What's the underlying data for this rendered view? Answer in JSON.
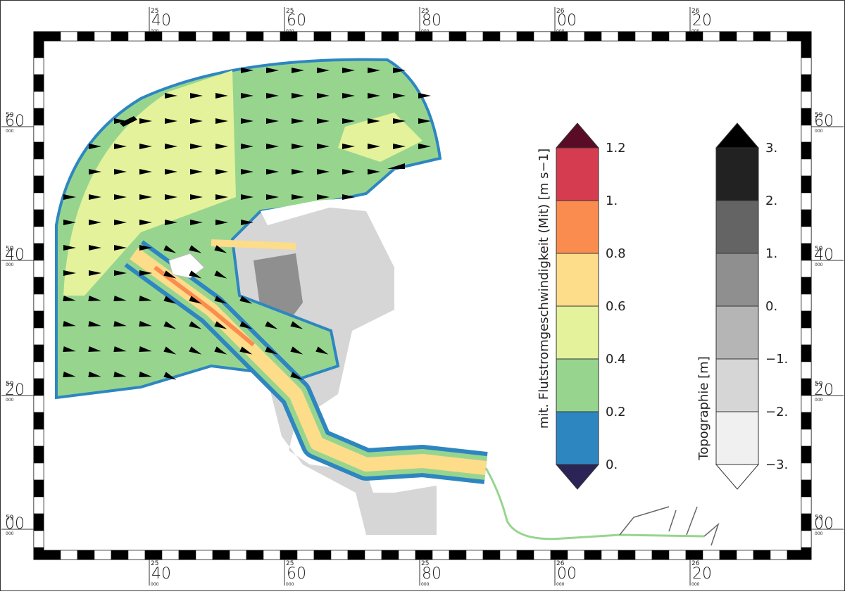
{
  "map": {
    "x_labels": [
      {
        "degree": "25",
        "minute": "40",
        "sub": "000"
      },
      {
        "degree": "25",
        "minute": "60",
        "sub": "000"
      },
      {
        "degree": "25",
        "minute": "80",
        "sub": "000"
      },
      {
        "degree": "26",
        "minute": "00",
        "sub": "000"
      },
      {
        "degree": "26",
        "minute": "20",
        "sub": "000"
      }
    ],
    "y_labels": [
      {
        "degree": "59",
        "minute": "60",
        "sub": "000"
      },
      {
        "degree": "59",
        "minute": "40",
        "sub": "000"
      },
      {
        "degree": "59",
        "minute": "20",
        "sub": "000"
      },
      {
        "degree": "59",
        "minute": "00",
        "sub": "000"
      }
    ]
  },
  "legends": [
    {
      "title": "mit. Flutstromgeschwindigkeit (Mit) [m s−1]",
      "ticks": [
        "1.2",
        "1.",
        "0.8",
        "0.6",
        "0.4",
        "0.2",
        "0."
      ],
      "colors": [
        "#5a0c26",
        "#d63c4f",
        "#fb8c50",
        "#fddc8a",
        "#e4f29c",
        "#97d58f",
        "#2e86c1",
        "#2b2557"
      ]
    },
    {
      "title": "Topographie [m]",
      "ticks": [
        "3.",
        "2.",
        "1.",
        "0.",
        "−1.",
        "−2.",
        "−3."
      ],
      "colors": [
        "#000000",
        "#222222",
        "#646464",
        "#8f8f8f",
        "#b5b5b5",
        "#d6d6d6",
        "#f0f0f0",
        "#ffffff"
      ]
    }
  ]
}
